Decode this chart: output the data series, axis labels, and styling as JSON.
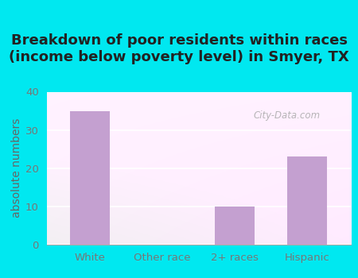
{
  "title": "Breakdown of poor residents within races\n(income below poverty level) in Smyer, TX",
  "categories": [
    "White",
    "Other race",
    "2+ races",
    "Hispanic"
  ],
  "values": [
    35,
    0,
    10,
    23
  ],
  "bar_color": "#c4a0d0",
  "ylabel": "absolute numbers",
  "ylim": [
    0,
    40
  ],
  "yticks": [
    0,
    10,
    20,
    30,
    40
  ],
  "background_outer": "#00e8f0",
  "title_fontsize": 13,
  "axis_label_fontsize": 10,
  "tick_fontsize": 9.5,
  "watermark": "City-Data.com",
  "tick_color": "#777777",
  "ylabel_color": "#666666",
  "title_color": "#222222"
}
